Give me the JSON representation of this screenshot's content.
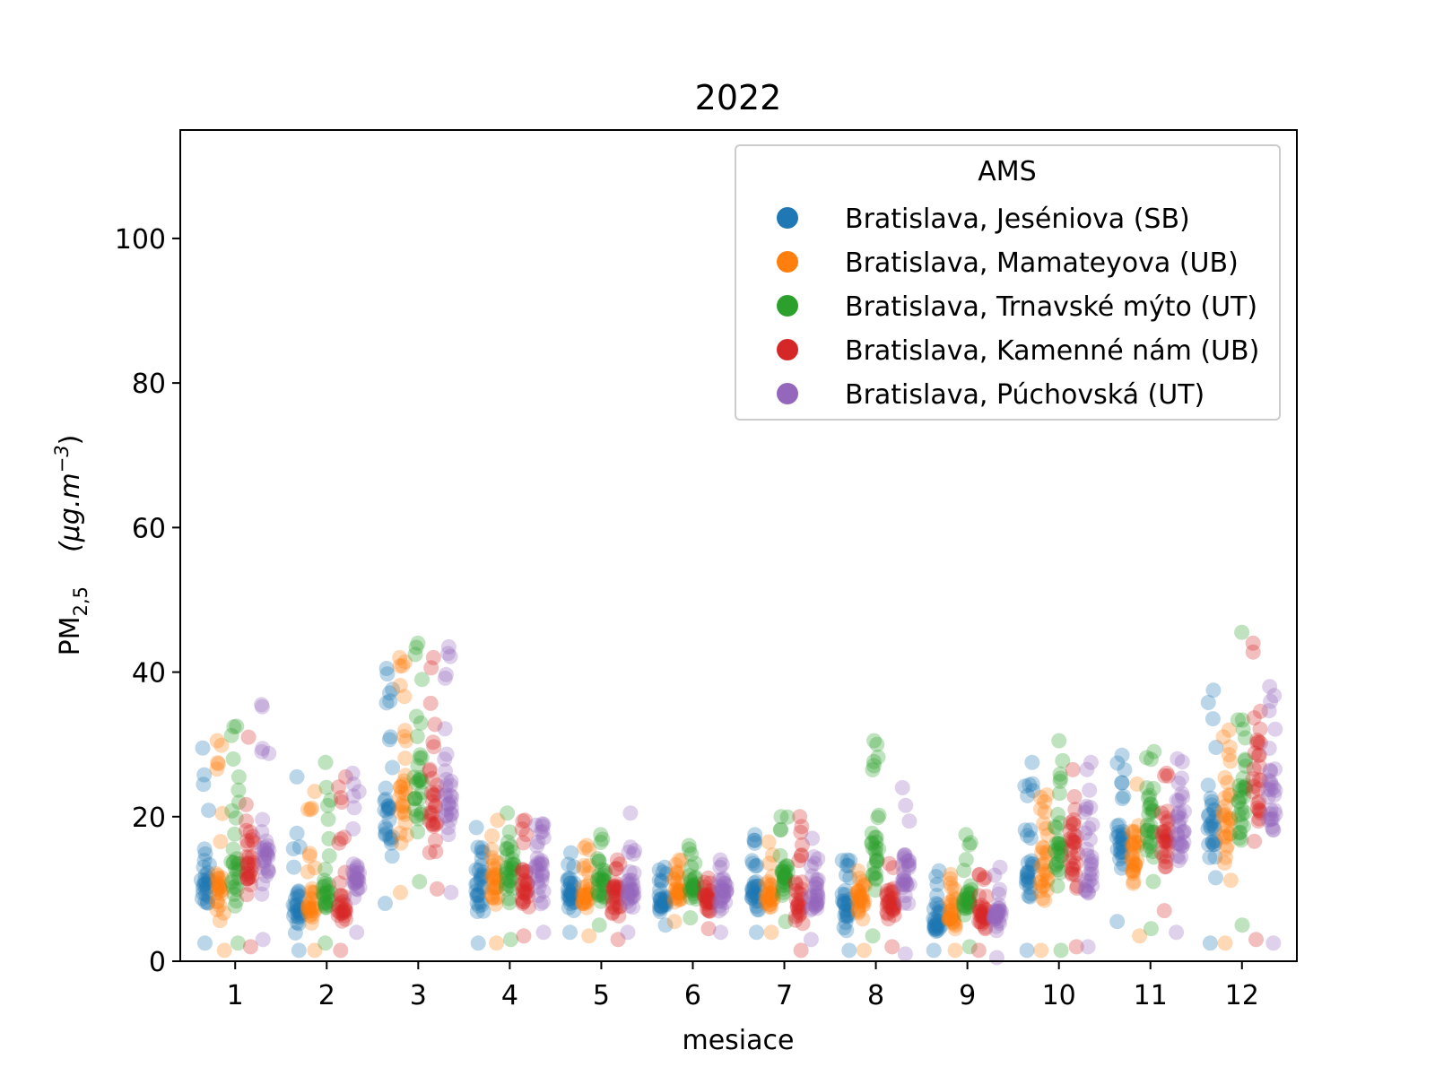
{
  "chart_data": {
    "type": "scatter",
    "title": "2022",
    "xlabel": "mesiace",
    "ylabel": {
      "base": "PM",
      "sub": "2,5",
      "unit_prefix": "(μg.m",
      "unit_sup": "−3",
      "unit_suffix": ")"
    },
    "x_categories": [
      "1",
      "2",
      "3",
      "4",
      "5",
      "6",
      "7",
      "8",
      "9",
      "10",
      "11",
      "12"
    ],
    "ylim": [
      0,
      115
    ],
    "y_ticks": [
      0,
      20,
      40,
      60,
      80,
      100
    ],
    "grid": false,
    "legend": {
      "title": "AMS",
      "position": "top-right"
    },
    "series": [
      {
        "name": "Bratislava, Jeséniova (SB)",
        "color": "#1f77b4",
        "mins": [
          2.5,
          1.5,
          8.0,
          2.5,
          4.0,
          5.0,
          4.0,
          1.5,
          1.5,
          1.5,
          5.5,
          2.5
        ],
        "maxs": [
          29.5,
          25.5,
          40.5,
          18.5,
          15.0,
          13.0,
          17.5,
          14.0,
          12.5,
          27.5,
          28.5,
          37.5
        ],
        "centers": [
          10,
          7,
          19,
          10,
          9,
          8,
          9,
          7,
          5,
          11,
          15,
          17
        ]
      },
      {
        "name": "Bratislava, Mamateyova (UB)",
        "color": "#ff7f0e",
        "mins": [
          1.5,
          1.5,
          9.5,
          2.5,
          3.5,
          5.5,
          4.0,
          1.5,
          1.5,
          1.5,
          3.5,
          2.5
        ],
        "maxs": [
          30.5,
          23.5,
          42.0,
          19.5,
          16.0,
          14.0,
          16.5,
          12.5,
          12.0,
          23.0,
          24.5,
          32.0
        ],
        "centers": [
          9,
          7,
          21,
          10,
          9,
          9,
          9,
          8,
          6,
          11,
          14,
          17
        ]
      },
      {
        "name": "Bratislava, Trnavské mýto (UT)",
        "color": "#2ca02c",
        "mins": [
          2.5,
          2.5,
          11.0,
          3.0,
          5.0,
          6.0,
          5.5,
          3.5,
          2.0,
          1.5,
          4.5,
          5.0
        ],
        "maxs": [
          32.5,
          27.5,
          44.0,
          20.5,
          17.5,
          16.0,
          20.0,
          30.5,
          17.5,
          30.5,
          29.0,
          45.5
        ],
        "centers": [
          12,
          9,
          23,
          12,
          11,
          10,
          11,
          14,
          8,
          15,
          17,
          22
        ]
      },
      {
        "name": "Bratislava, Kamenné nám (UB)",
        "color": "#d62728",
        "mins": [
          2.0,
          1.5,
          10.0,
          3.5,
          3.0,
          4.5,
          1.5,
          2.0,
          1.5,
          2.0,
          7.0,
          3.0
        ],
        "maxs": [
          31.0,
          25.5,
          42.0,
          19.5,
          14.0,
          11.5,
          20.0,
          13.5,
          12.0,
          26.5,
          26.0,
          44.0
        ],
        "centers": [
          12,
          7,
          20,
          10,
          8,
          8,
          8,
          7,
          6,
          13,
          16,
          24
        ]
      },
      {
        "name": "Bratislava, Púchovská (UT)",
        "color": "#9467bd",
        "mins": [
          3.0,
          4.0,
          9.5,
          4.0,
          4.0,
          4.0,
          3.0,
          1.0,
          0.5,
          2.0,
          4.0,
          2.5
        ],
        "maxs": [
          35.5,
          26.0,
          43.5,
          19.0,
          20.5,
          14.0,
          17.0,
          24.0,
          13.0,
          27.5,
          28.0,
          38.0
        ],
        "centers": [
          13,
          11,
          22,
          11,
          9,
          9,
          9,
          11,
          6,
          13,
          17,
          21
        ]
      }
    ]
  }
}
